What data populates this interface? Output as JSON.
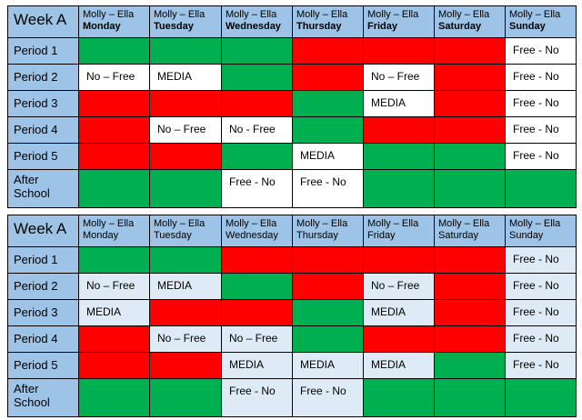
{
  "tables": [
    {
      "title": "Week A",
      "days": [
        {
          "name": "Molly – Ella",
          "day": "Monday"
        },
        {
          "name": "Molly – Ella",
          "day": "Tuesday"
        },
        {
          "name": "Molly – Ella",
          "day": "Wednesday"
        },
        {
          "name": "Molly – Ella",
          "day": "Thursday"
        },
        {
          "name": "Molly – Ella",
          "day": "Friday"
        },
        {
          "name": "Molly – Ella",
          "day": "Saturday"
        },
        {
          "name": "Molly – Ella",
          "day": "Sunday"
        }
      ],
      "rows": [
        {
          "label": "Period 1",
          "cells": [
            "",
            "",
            "",
            "",
            "",
            "",
            "Free - No"
          ]
        },
        {
          "label": "Period 2",
          "cells": [
            "No – Free",
            "MEDIA",
            "",
            "",
            "No – Free",
            "",
            "Free - No"
          ]
        },
        {
          "label": "Period 3",
          "cells": [
            "",
            "",
            "",
            "",
            "MEDIA",
            "",
            "Free - No"
          ]
        },
        {
          "label": "Period 4",
          "cells": [
            "",
            "No – Free",
            "No - Free",
            "",
            "",
            "",
            "Free - No"
          ]
        },
        {
          "label": "Period 5",
          "cells": [
            "",
            "",
            "",
            "MEDIA",
            "",
            "",
            "Free - No"
          ]
        },
        {
          "label": "After School",
          "cells": [
            "",
            "",
            "Free - No",
            "Free - No",
            "",
            "",
            ""
          ]
        }
      ],
      "cell_colors": [
        [
          "#00b050",
          "#00b050",
          "#00b050",
          "#ff0000",
          "#ff0000",
          "#ff0000",
          "#ffffff"
        ],
        [
          "#ffffff",
          "#ffffff",
          "#00b050",
          "#ff0000",
          "#ffffff",
          "#ff0000",
          "#ffffff"
        ],
        [
          "#ff0000",
          "#ff0000",
          "#ff0000",
          "#00b050",
          "#ffffff",
          "#ff0000",
          "#ffffff"
        ],
        [
          "#ff0000",
          "#ffffff",
          "#ffffff",
          "#00b050",
          "#ff0000",
          "#ff0000",
          "#ffffff"
        ],
        [
          "#ff0000",
          "#ff0000",
          "#00b050",
          "#ffffff",
          "#00b050",
          "#00b050",
          "#ffffff"
        ],
        [
          "#00b050",
          "#00b050",
          "#ffffff",
          "#ffffff",
          "#00b050",
          "#00b050",
          "#00b050"
        ]
      ]
    },
    {
      "title": "Week A",
      "days": [
        {
          "name": "Molly – Ella",
          "day": "Monday"
        },
        {
          "name": "Molly – Ella",
          "day": "Tuesday"
        },
        {
          "name": "Molly – Ella",
          "day": "Wednesday"
        },
        {
          "name": "Molly – Ella",
          "day": "Thursday"
        },
        {
          "name": "Molly – Ella",
          "day": "Friday"
        },
        {
          "name": "Molly – Ella",
          "day": "Saturday"
        },
        {
          "name": "Molly – Ella",
          "day": "Sunday"
        }
      ],
      "rows": [
        {
          "label": "Period 1",
          "cells": [
            "",
            "",
            "",
            "",
            "",
            "",
            "Free - No"
          ]
        },
        {
          "label": "Period 2",
          "cells": [
            "No – Free",
            "MEDIA",
            "",
            "",
            "No – Free",
            "",
            "Free - No"
          ]
        },
        {
          "label": "Period 3",
          "cells": [
            "MEDIA",
            "",
            "",
            "",
            "MEDIA",
            "",
            "Free - No"
          ]
        },
        {
          "label": "Period 4",
          "cells": [
            "",
            "No – Free",
            "No – Free",
            "",
            "",
            "",
            "Free - No"
          ]
        },
        {
          "label": "Period 5",
          "cells": [
            "",
            "",
            "MEDIA",
            "MEDIA",
            "MEDIA",
            "",
            "Free - No"
          ]
        },
        {
          "label": "After School",
          "cells": [
            "",
            "",
            "Free - No",
            "Free - No",
            "",
            "",
            ""
          ]
        }
      ],
      "cell_colors": [
        [
          "#00b050",
          "#00b050",
          "#ff0000",
          "#ff0000",
          "#ff0000",
          "#ff0000",
          "#deebf7"
        ],
        [
          "#deebf7",
          "#deebf7",
          "#00b050",
          "#ff0000",
          "#deebf7",
          "#ff0000",
          "#deebf7"
        ],
        [
          "#deebf7",
          "#ff0000",
          "#ff0000",
          "#00b050",
          "#deebf7",
          "#ff0000",
          "#deebf7"
        ],
        [
          "#ff0000",
          "#deebf7",
          "#deebf7",
          "#00b050",
          "#ff0000",
          "#ff0000",
          "#deebf7"
        ],
        [
          "#ff0000",
          "#ff0000",
          "#deebf7",
          "#deebf7",
          "#deebf7",
          "#00b050",
          "#deebf7"
        ],
        [
          "#00b050",
          "#00b050",
          "#deebf7",
          "#deebf7",
          "#00b050",
          "#00b050",
          "#00b050"
        ]
      ]
    }
  ]
}
